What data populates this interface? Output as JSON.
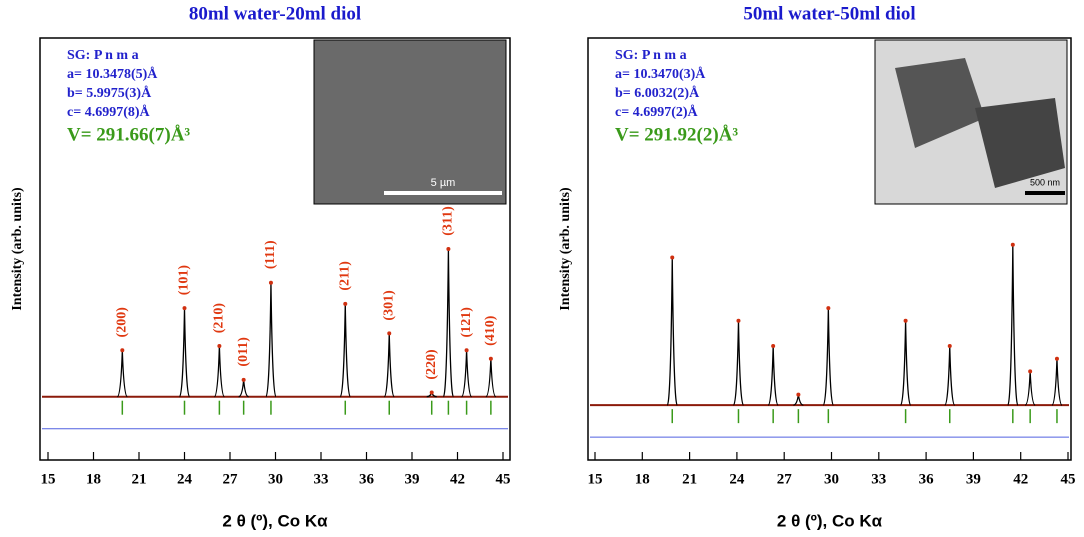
{
  "chart_data": [
    {
      "type": "xrd",
      "title": "80ml water-20ml diol",
      "x_label": "2 θ (º), Co Kα",
      "y_label": "Intensity (arb. units)",
      "xlim": [
        15,
        45
      ],
      "xticks": [
        15,
        18,
        21,
        24,
        27,
        30,
        33,
        36,
        39,
        42,
        45
      ],
      "ylim": [
        0,
        100
      ],
      "baseline": 15,
      "annotations": [
        "SG: P n m a",
        "a= 10.3478(5)Å",
        "b= 5.9975(3)Å",
        "c= 4.6997(8)Å"
      ],
      "volume": "V= 291.66(7)Å³",
      "inset_scale": "5 µm",
      "peaks": {
        "x": [
          19.9,
          24.0,
          26.3,
          27.9,
          29.7,
          34.6,
          37.5,
          40.3,
          41.4,
          42.6,
          44.2
        ],
        "values": [
          26,
          36,
          27,
          19,
          42,
          37,
          30,
          16,
          50,
          26,
          24
        ],
        "labels": [
          "(200)",
          "(101)",
          "(210)",
          "(011)",
          "(111)",
          "(211)",
          "(301)",
          "(220)",
          "(311)",
          "(121)",
          "(410)"
        ]
      }
    },
    {
      "type": "xrd",
      "title": "50ml water-50ml diol",
      "x_label": "2 θ (º), Co Kα",
      "y_label": "Intensity (arb. units)",
      "xlim": [
        15,
        45
      ],
      "xticks": [
        15,
        18,
        21,
        24,
        27,
        30,
        33,
        36,
        39,
        42,
        45
      ],
      "ylim": [
        0,
        100
      ],
      "baseline": 13,
      "annotations": [
        "SG: P n m a",
        "a= 10.3470(3)Å",
        "b= 6.0032(2)Å",
        "c= 4.6997(2)Å"
      ],
      "volume": "V= 291.92(2)Å³",
      "inset_scale": "500 nm",
      "peaks": {
        "x": [
          19.9,
          24.1,
          26.3,
          27.9,
          29.8,
          34.7,
          37.5,
          41.5,
          42.6,
          44.3
        ],
        "values": [
          48,
          33,
          27,
          15.5,
          36,
          33,
          27,
          51,
          21,
          24
        ]
      }
    }
  ]
}
